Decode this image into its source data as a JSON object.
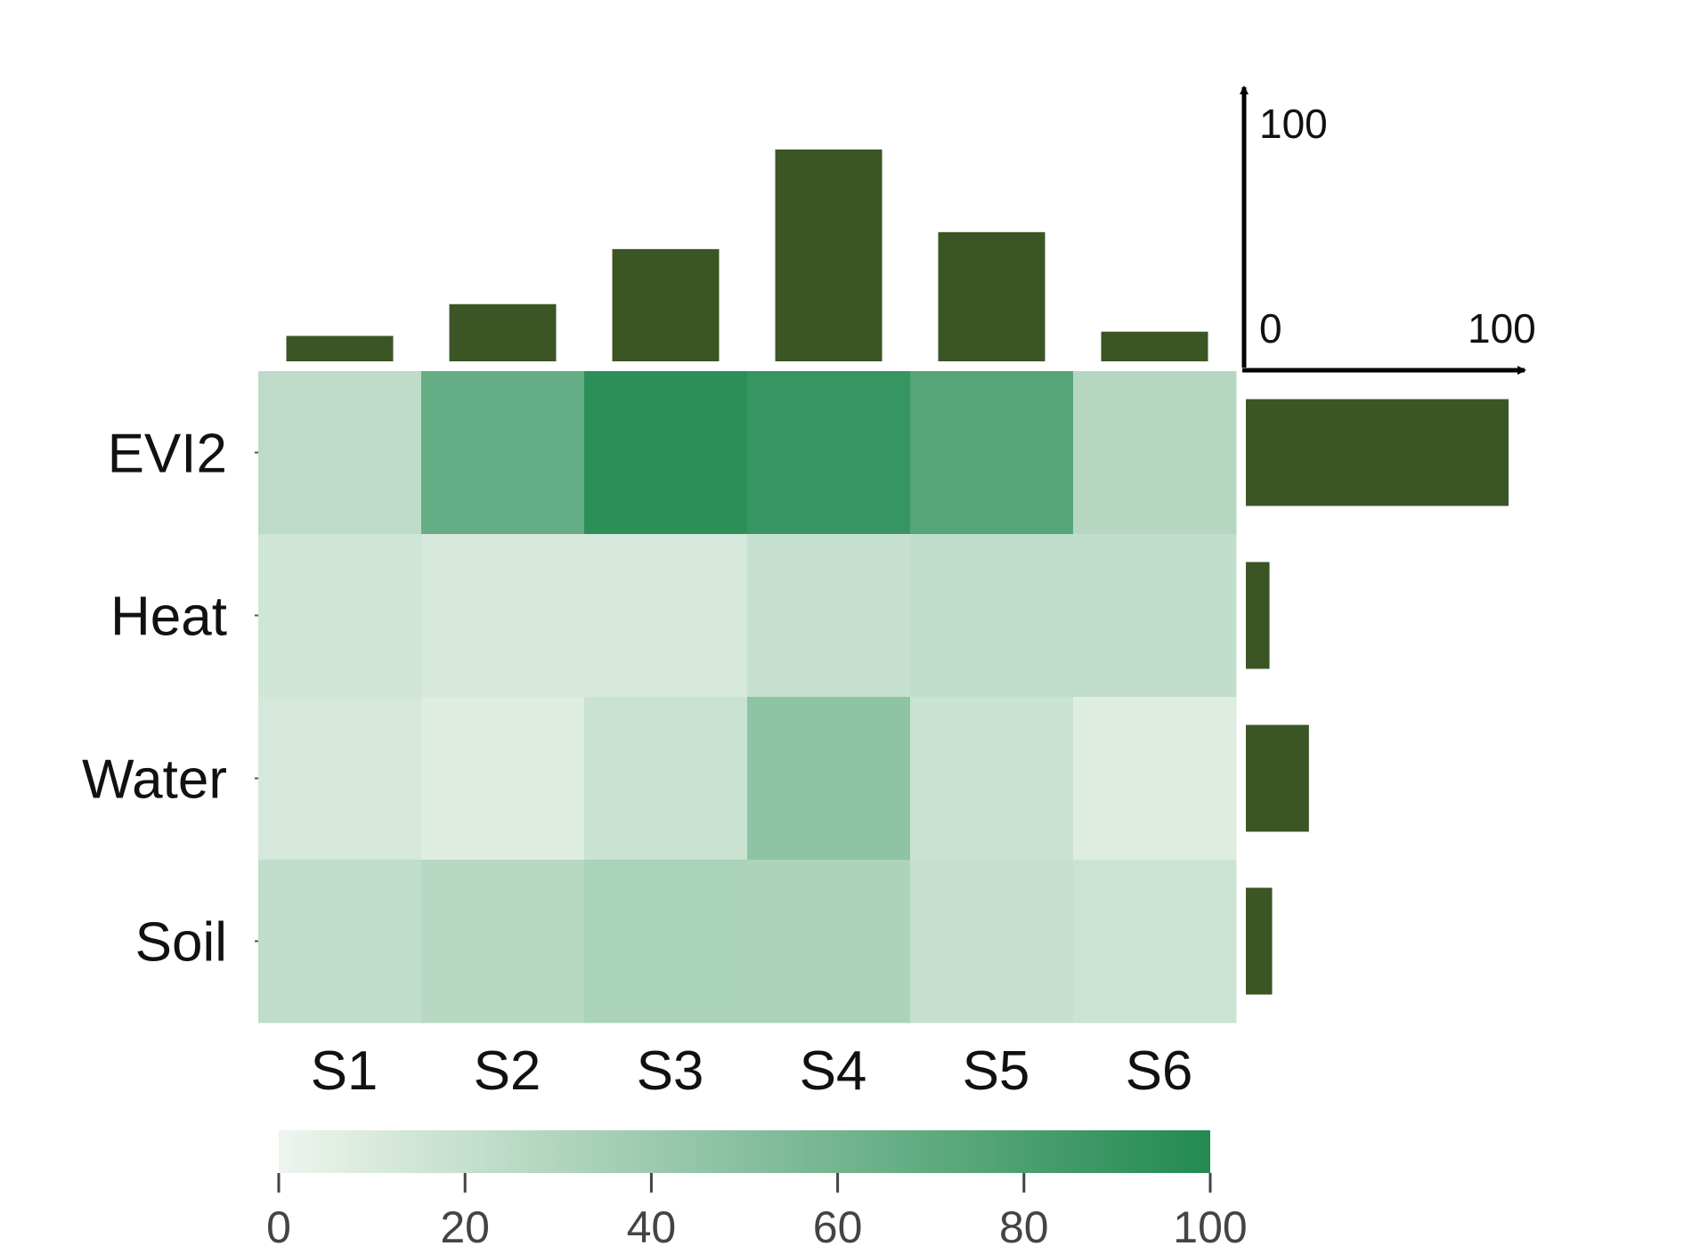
{
  "chart_data": {
    "type": "heatmap",
    "title": "",
    "rows": [
      "EVI2",
      "Heat",
      "Water",
      "Soil"
    ],
    "columns": [
      "S1",
      "S2",
      "S3",
      "S4",
      "S5",
      "S6"
    ],
    "values": [
      [
        24,
        67,
        95,
        90,
        75,
        28
      ],
      [
        15,
        12,
        12,
        20,
        22,
        22
      ],
      [
        12,
        8,
        18,
        47,
        18,
        8
      ],
      [
        22,
        27,
        33,
        32,
        20,
        17
      ]
    ],
    "value_range": [
      0,
      100
    ],
    "colormap": {
      "low": "#eef5ee",
      "high": "#228a50"
    },
    "colorbar": {
      "ticks": [
        0,
        20,
        40,
        60,
        80,
        100
      ],
      "orientation": "horizontal",
      "placement": "bottom"
    },
    "column_marginal": {
      "type": "bar",
      "orientation": "vertical",
      "placement": "top",
      "values": [
        12,
        27,
        53,
        100,
        61,
        14
      ]
    },
    "row_marginal": {
      "type": "bar",
      "orientation": "horizontal",
      "placement": "right",
      "values": [
        100,
        9,
        24,
        10
      ]
    },
    "marginal_scale": {
      "axis_ticks": [
        "100",
        "0",
        "100"
      ],
      "range": [
        0,
        100
      ]
    },
    "bar_color": "#3b5524"
  }
}
